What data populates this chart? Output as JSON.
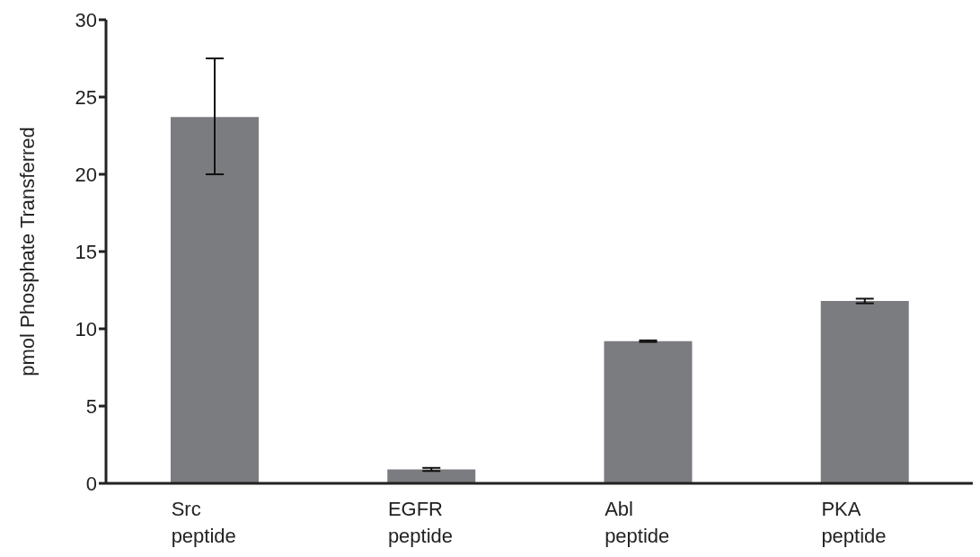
{
  "chart_data": {
    "type": "bar",
    "ylabel": "pmol Phosphate Transferred",
    "categories": [
      "Src peptide",
      "EGFR peptide",
      "Abl peptide",
      "PKA peptide"
    ],
    "values": [
      23.7,
      0.9,
      9.2,
      11.8
    ],
    "errors": [
      [
        20.0,
        27.5
      ],
      0.1,
      0.05,
      0.15
    ],
    "color": "#7b7c80",
    "ylim": [
      0,
      30
    ],
    "yticks": [
      0,
      5,
      10,
      15,
      20,
      25,
      30
    ],
    "grid": false
  }
}
